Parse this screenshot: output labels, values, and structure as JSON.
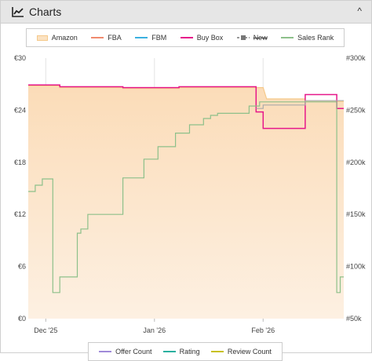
{
  "panel": {
    "title": "Charts",
    "chart_icon": "line-chart-icon",
    "collapse_icon": "chevron-up-icon",
    "collapse_glyph": "^"
  },
  "legend": [
    {
      "label": "Amazon",
      "color": "#f5c98a",
      "kind": "area",
      "disabled": false
    },
    {
      "label": "FBA",
      "color": "#f08a6e",
      "kind": "line",
      "disabled": false
    },
    {
      "label": "FBM",
      "color": "#3bb0e0",
      "kind": "line",
      "disabled": false
    },
    {
      "label": "Buy Box",
      "color": "#e6188a",
      "kind": "line",
      "disabled": false
    },
    {
      "label": "New",
      "color": "#777777",
      "kind": "marker",
      "disabled": true
    },
    {
      "label": "Sales Rank",
      "color": "#8dc08a",
      "kind": "line",
      "disabled": false
    }
  ],
  "legend2": [
    {
      "label": "Offer Count",
      "color": "#a08ad8"
    },
    {
      "label": "Rating",
      "color": "#2ab0a0"
    },
    {
      "label": "Review Count",
      "color": "#c8c020"
    }
  ],
  "chart_data": {
    "type": "line",
    "x_ticks": [
      "Dec '25",
      "Jan '26",
      "Feb '26"
    ],
    "x_tick_days": [
      5,
      36,
      67
    ],
    "x_range_days": [
      0,
      90
    ],
    "y_left": {
      "ticks": [
        "€0",
        "€6",
        "€12",
        "€18",
        "€24",
        "€30"
      ],
      "range": [
        0,
        30
      ]
    },
    "y_right": {
      "ticks": [
        "#50k",
        "#100k",
        "#150k",
        "#200k",
        "#250k",
        "#300k"
      ],
      "range": [
        50000,
        300000
      ]
    },
    "grid": "vertical",
    "series": [
      {
        "name": "Amazon",
        "axis": "left",
        "style": "area",
        "color": "#f5c98a",
        "points": [
          [
            0,
            26.8
          ],
          [
            9,
            26.8
          ],
          [
            9,
            26.6
          ],
          [
            27,
            26.6
          ],
          [
            27,
            26.5
          ],
          [
            43,
            26.5
          ],
          [
            43,
            26.6
          ],
          [
            65,
            26.6
          ],
          [
            65,
            26.6
          ],
          [
            67,
            26.6
          ],
          [
            68,
            25.3
          ],
          [
            79,
            25.3
          ],
          [
            79,
            25.0
          ],
          [
            90,
            25.0
          ]
        ]
      },
      {
        "name": "Buy Box",
        "axis": "left",
        "style": "step",
        "color": "#e6188a",
        "points": [
          [
            0,
            26.9
          ],
          [
            9,
            26.9
          ],
          [
            9,
            26.7
          ],
          [
            27,
            26.7
          ],
          [
            27,
            26.6
          ],
          [
            43,
            26.6
          ],
          [
            43,
            26.7
          ],
          [
            65,
            26.7
          ],
          [
            65,
            23.8
          ],
          [
            67,
            23.8
          ],
          [
            67,
            21.9
          ],
          [
            79,
            21.9
          ],
          [
            79,
            25.8
          ],
          [
            88,
            25.8
          ],
          [
            88,
            24.2
          ],
          [
            90,
            24.2
          ]
        ]
      },
      {
        "name": "New",
        "axis": "left",
        "style": "step",
        "color": "#aaaaaa",
        "points": [
          [
            65,
            24.2
          ],
          [
            67,
            24.2
          ],
          [
            67,
            24.6
          ],
          [
            79,
            24.6
          ],
          [
            79,
            25.1
          ],
          [
            90,
            25.1
          ]
        ]
      },
      {
        "name": "Sales Rank",
        "axis": "right",
        "style": "step",
        "color": "#8dc08a",
        "points": [
          [
            0,
            172000
          ],
          [
            2,
            172000
          ],
          [
            2,
            178000
          ],
          [
            4,
            178000
          ],
          [
            4,
            184000
          ],
          [
            7,
            184000
          ],
          [
            7,
            75000
          ],
          [
            9,
            75000
          ],
          [
            9,
            90000
          ],
          [
            14,
            90000
          ],
          [
            14,
            132000
          ],
          [
            15,
            132000
          ],
          [
            15,
            136000
          ],
          [
            17,
            136000
          ],
          [
            17,
            150000
          ],
          [
            27,
            150000
          ],
          [
            27,
            185000
          ],
          [
            33,
            185000
          ],
          [
            33,
            203000
          ],
          [
            37,
            203000
          ],
          [
            37,
            215000
          ],
          [
            42,
            215000
          ],
          [
            42,
            228000
          ],
          [
            46,
            228000
          ],
          [
            46,
            236000
          ],
          [
            50,
            236000
          ],
          [
            50,
            242000
          ],
          [
            52,
            242000
          ],
          [
            52,
            245000
          ],
          [
            54,
            245000
          ],
          [
            54,
            247000
          ],
          [
            63,
            247000
          ],
          [
            63,
            254000
          ],
          [
            66,
            254000
          ],
          [
            66,
            258000
          ],
          [
            88,
            258000
          ],
          [
            88,
            75000
          ],
          [
            89,
            75000
          ],
          [
            89,
            90000
          ],
          [
            90,
            90000
          ]
        ]
      }
    ]
  }
}
